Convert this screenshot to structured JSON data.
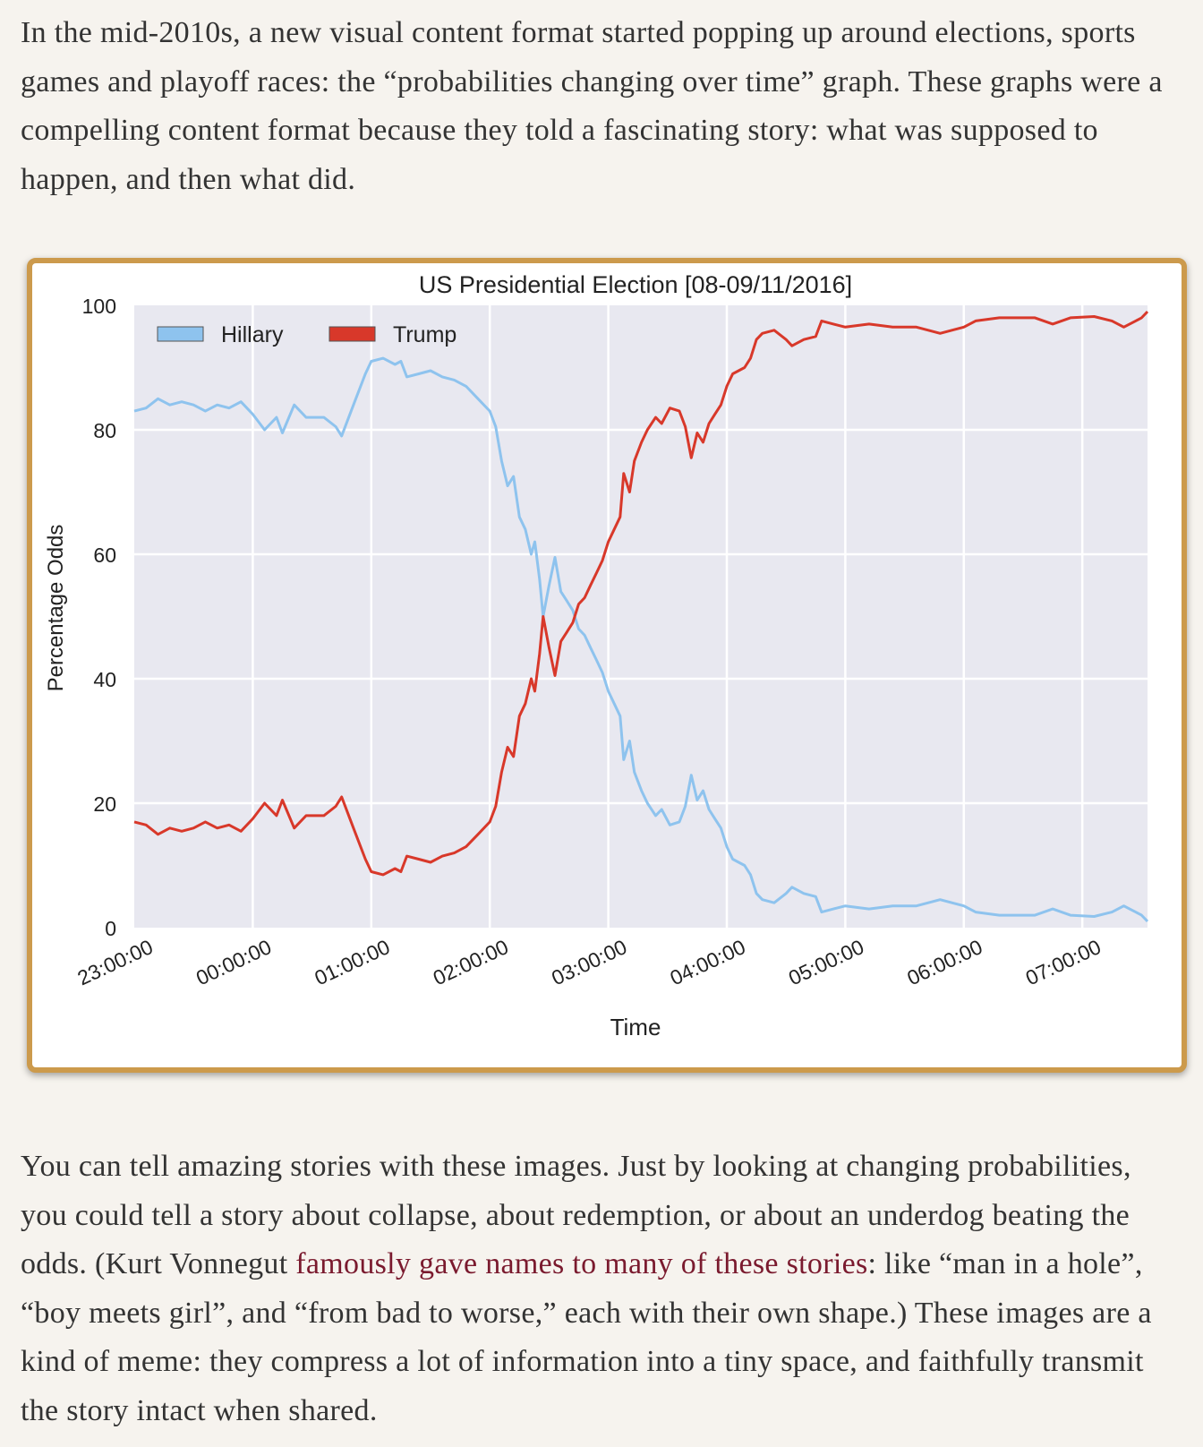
{
  "article": {
    "paragraph_1": "In the mid-2010s, a new visual content format started popping up around elections, sports games and playoff races: the “probabilities changing over time” graph. These graphs were a compelling content format because they told a fascinating story: what was supposed to happen, and then what did.",
    "paragraph_2_before_link": "You can tell amazing stories with these images. Just by looking at changing probabilities, you could tell a story about collapse, about redemption, or about an underdog beating the odds. (Kurt Vonnegut ",
    "paragraph_2_link": "famously gave names to many of these stories",
    "paragraph_2_after_link": ": like “man in a hole”, “boy meets girl”, and “from bad to worse,” each with their own shape.) These images are a kind of meme: they compress a lot of information into a tiny space, and faithfully transmit the story intact when shared."
  },
  "colors": {
    "page_bg": "#f6f3ee",
    "frame_border": "#cc9a4c",
    "plot_bg": "#e8e8f0",
    "grid": "#ffffff",
    "hillary": "#8ec3ee",
    "trump": "#d8382a",
    "link": "#7a1a2e"
  },
  "chart_data": {
    "type": "line",
    "title": "US Presidential Election [08-09/11/2016]",
    "xlabel": "Time",
    "ylabel": "Percentage Odds",
    "ylim": [
      0,
      100
    ],
    "xlim": [
      0,
      8.55
    ],
    "yticks": [
      0,
      20,
      40,
      60,
      80,
      100
    ],
    "xticks": [
      0,
      1,
      2,
      3,
      4,
      5,
      6,
      7,
      8
    ],
    "xtick_labels": [
      "23:00:00",
      "00:00:00",
      "01:00:00",
      "02:00:00",
      "03:00:00",
      "04:00:00",
      "05:00:00",
      "06:00:00",
      "07:00:00"
    ],
    "grid": true,
    "legend_position": "top-left",
    "x_unit": "hours after 23:00:00",
    "series": [
      {
        "name": "Hillary",
        "color": "#8ec3ee",
        "points": [
          [
            0.0,
            83.0
          ],
          [
            0.1,
            83.5
          ],
          [
            0.2,
            85.0
          ],
          [
            0.3,
            84.0
          ],
          [
            0.4,
            84.5
          ],
          [
            0.5,
            84.0
          ],
          [
            0.6,
            83.0
          ],
          [
            0.7,
            84.0
          ],
          [
            0.8,
            83.5
          ],
          [
            0.9,
            84.5
          ],
          [
            1.0,
            82.5
          ],
          [
            1.1,
            80.0
          ],
          [
            1.2,
            82.0
          ],
          [
            1.25,
            79.5
          ],
          [
            1.35,
            84.0
          ],
          [
            1.45,
            82.0
          ],
          [
            1.6,
            82.0
          ],
          [
            1.7,
            80.5
          ],
          [
            1.75,
            79.0
          ],
          [
            1.85,
            84.0
          ],
          [
            1.95,
            89.0
          ],
          [
            2.0,
            91.0
          ],
          [
            2.1,
            91.5
          ],
          [
            2.2,
            90.5
          ],
          [
            2.25,
            91.0
          ],
          [
            2.3,
            88.5
          ],
          [
            2.4,
            89.0
          ],
          [
            2.5,
            89.5
          ],
          [
            2.6,
            88.5
          ],
          [
            2.7,
            88.0
          ],
          [
            2.8,
            87.0
          ],
          [
            2.9,
            85.0
          ],
          [
            3.0,
            83.0
          ],
          [
            3.05,
            80.5
          ],
          [
            3.1,
            75.0
          ],
          [
            3.15,
            71.0
          ],
          [
            3.2,
            72.5
          ],
          [
            3.25,
            66.0
          ],
          [
            3.3,
            64.0
          ],
          [
            3.35,
            60.0
          ],
          [
            3.38,
            62.0
          ],
          [
            3.42,
            56.0
          ],
          [
            3.45,
            50.0
          ],
          [
            3.5,
            55.0
          ],
          [
            3.55,
            59.5
          ],
          [
            3.6,
            54.0
          ],
          [
            3.65,
            52.5
          ],
          [
            3.7,
            51.0
          ],
          [
            3.75,
            48.0
          ],
          [
            3.8,
            47.0
          ],
          [
            3.85,
            45.0
          ],
          [
            3.9,
            43.0
          ],
          [
            3.95,
            41.0
          ],
          [
            4.0,
            38.0
          ],
          [
            4.05,
            36.0
          ],
          [
            4.1,
            34.0
          ],
          [
            4.13,
            27.0
          ],
          [
            4.18,
            30.0
          ],
          [
            4.22,
            25.0
          ],
          [
            4.28,
            22.0
          ],
          [
            4.33,
            20.0
          ],
          [
            4.4,
            18.0
          ],
          [
            4.45,
            19.0
          ],
          [
            4.52,
            16.5
          ],
          [
            4.6,
            17.0
          ],
          [
            4.65,
            19.5
          ],
          [
            4.7,
            24.5
          ],
          [
            4.75,
            20.5
          ],
          [
            4.8,
            22.0
          ],
          [
            4.85,
            19.0
          ],
          [
            4.9,
            17.5
          ],
          [
            4.95,
            16.0
          ],
          [
            5.0,
            13.0
          ],
          [
            5.05,
            11.0
          ],
          [
            5.15,
            10.0
          ],
          [
            5.2,
            8.5
          ],
          [
            5.25,
            5.5
          ],
          [
            5.3,
            4.5
          ],
          [
            5.4,
            4.0
          ],
          [
            5.5,
            5.5
          ],
          [
            5.55,
            6.5
          ],
          [
            5.65,
            5.5
          ],
          [
            5.75,
            5.0
          ],
          [
            5.8,
            2.5
          ],
          [
            5.9,
            3.0
          ],
          [
            6.0,
            3.5
          ],
          [
            6.2,
            3.0
          ],
          [
            6.4,
            3.5
          ],
          [
            6.6,
            3.5
          ],
          [
            6.7,
            4.0
          ],
          [
            6.8,
            4.5
          ],
          [
            6.9,
            4.0
          ],
          [
            7.0,
            3.5
          ],
          [
            7.1,
            2.5
          ],
          [
            7.3,
            2.0
          ],
          [
            7.6,
            2.0
          ],
          [
            7.75,
            3.0
          ],
          [
            7.9,
            2.0
          ],
          [
            8.1,
            1.8
          ],
          [
            8.25,
            2.5
          ],
          [
            8.35,
            3.5
          ],
          [
            8.45,
            2.5
          ],
          [
            8.5,
            2.0
          ],
          [
            8.55,
            1.0
          ]
        ]
      },
      {
        "name": "Trump",
        "color": "#d8382a",
        "points": [
          [
            0.0,
            17.0
          ],
          [
            0.1,
            16.5
          ],
          [
            0.2,
            15.0
          ],
          [
            0.3,
            16.0
          ],
          [
            0.4,
            15.5
          ],
          [
            0.5,
            16.0
          ],
          [
            0.6,
            17.0
          ],
          [
            0.7,
            16.0
          ],
          [
            0.8,
            16.5
          ],
          [
            0.9,
            15.5
          ],
          [
            1.0,
            17.5
          ],
          [
            1.1,
            20.0
          ],
          [
            1.2,
            18.0
          ],
          [
            1.25,
            20.5
          ],
          [
            1.35,
            16.0
          ],
          [
            1.45,
            18.0
          ],
          [
            1.6,
            18.0
          ],
          [
            1.7,
            19.5
          ],
          [
            1.75,
            21.0
          ],
          [
            1.85,
            16.0
          ],
          [
            1.95,
            11.0
          ],
          [
            2.0,
            9.0
          ],
          [
            2.1,
            8.5
          ],
          [
            2.2,
            9.5
          ],
          [
            2.25,
            9.0
          ],
          [
            2.3,
            11.5
          ],
          [
            2.4,
            11.0
          ],
          [
            2.5,
            10.5
          ],
          [
            2.6,
            11.5
          ],
          [
            2.7,
            12.0
          ],
          [
            2.8,
            13.0
          ],
          [
            2.9,
            15.0
          ],
          [
            3.0,
            17.0
          ],
          [
            3.05,
            19.5
          ],
          [
            3.1,
            25.0
          ],
          [
            3.15,
            29.0
          ],
          [
            3.2,
            27.5
          ],
          [
            3.25,
            34.0
          ],
          [
            3.3,
            36.0
          ],
          [
            3.35,
            40.0
          ],
          [
            3.38,
            38.0
          ],
          [
            3.42,
            44.0
          ],
          [
            3.45,
            50.0
          ],
          [
            3.5,
            45.0
          ],
          [
            3.55,
            40.5
          ],
          [
            3.6,
            46.0
          ],
          [
            3.65,
            47.5
          ],
          [
            3.7,
            49.0
          ],
          [
            3.75,
            52.0
          ],
          [
            3.8,
            53.0
          ],
          [
            3.85,
            55.0
          ],
          [
            3.9,
            57.0
          ],
          [
            3.95,
            59.0
          ],
          [
            4.0,
            62.0
          ],
          [
            4.05,
            64.0
          ],
          [
            4.1,
            66.0
          ],
          [
            4.13,
            73.0
          ],
          [
            4.18,
            70.0
          ],
          [
            4.22,
            75.0
          ],
          [
            4.28,
            78.0
          ],
          [
            4.33,
            80.0
          ],
          [
            4.4,
            82.0
          ],
          [
            4.45,
            81.0
          ],
          [
            4.52,
            83.5
          ],
          [
            4.6,
            83.0
          ],
          [
            4.65,
            80.5
          ],
          [
            4.7,
            75.5
          ],
          [
            4.75,
            79.5
          ],
          [
            4.8,
            78.0
          ],
          [
            4.85,
            81.0
          ],
          [
            4.9,
            82.5
          ],
          [
            4.95,
            84.0
          ],
          [
            5.0,
            87.0
          ],
          [
            5.05,
            89.0
          ],
          [
            5.15,
            90.0
          ],
          [
            5.2,
            91.5
          ],
          [
            5.25,
            94.5
          ],
          [
            5.3,
            95.5
          ],
          [
            5.4,
            96.0
          ],
          [
            5.5,
            94.5
          ],
          [
            5.55,
            93.5
          ],
          [
            5.65,
            94.5
          ],
          [
            5.75,
            95.0
          ],
          [
            5.8,
            97.5
          ],
          [
            5.9,
            97.0
          ],
          [
            6.0,
            96.5
          ],
          [
            6.2,
            97.0
          ],
          [
            6.4,
            96.5
          ],
          [
            6.6,
            96.5
          ],
          [
            6.7,
            96.0
          ],
          [
            6.8,
            95.5
          ],
          [
            6.9,
            96.0
          ],
          [
            7.0,
            96.5
          ],
          [
            7.1,
            97.5
          ],
          [
            7.3,
            98.0
          ],
          [
            7.6,
            98.0
          ],
          [
            7.75,
            97.0
          ],
          [
            7.9,
            98.0
          ],
          [
            8.1,
            98.2
          ],
          [
            8.25,
            97.5
          ],
          [
            8.35,
            96.5
          ],
          [
            8.45,
            97.5
          ],
          [
            8.5,
            98.0
          ],
          [
            8.55,
            99.0
          ]
        ]
      }
    ]
  }
}
